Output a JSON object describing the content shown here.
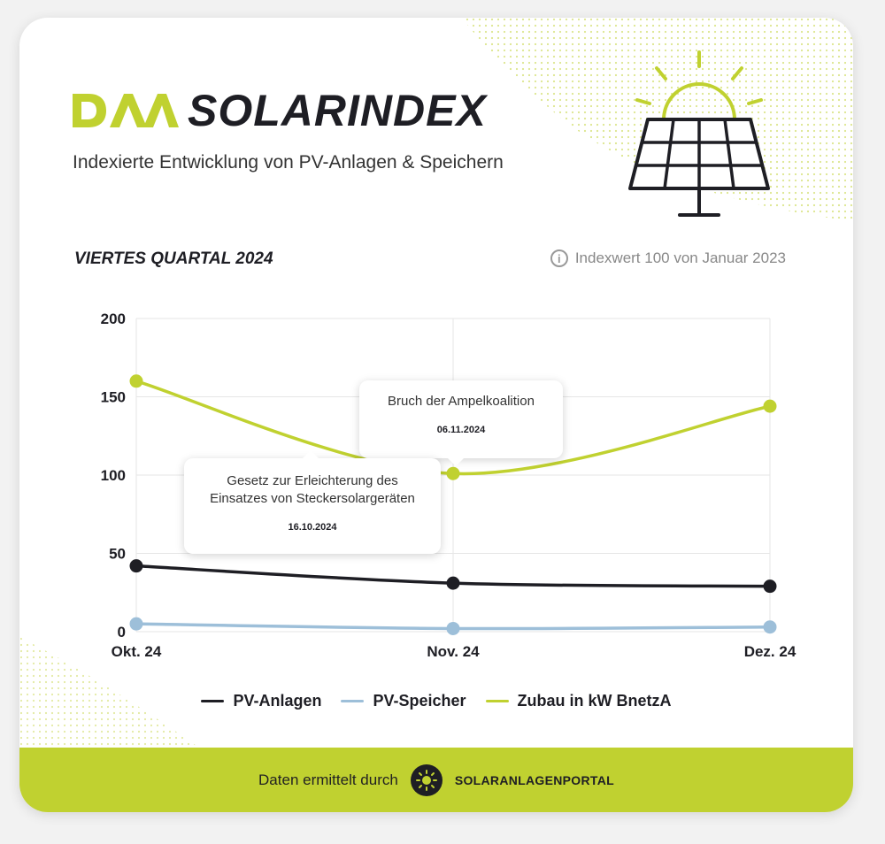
{
  "header": {
    "brand": "SOLARINDEX",
    "subtitle": "Indexierte Entwicklung von PV-Anlagen & Speichern"
  },
  "quarter_label": "VIERTES QUARTAL 2024",
  "index_note": "Indexwert 100 von Januar 2023",
  "colors": {
    "accent": "#c0d130",
    "dark": "#1e1e24",
    "light_blue": "#9dbfd9"
  },
  "tooltips": [
    {
      "title": "Bruch der Ampelkoalition",
      "date": "06.11.2024"
    },
    {
      "title": "Gesetz zur Erleichterung des Einsatzes von Steckersolargeräten",
      "date": "16.10.2024"
    }
  ],
  "chart_data": {
    "type": "line",
    "categories": [
      "Okt. 24",
      "Nov. 24",
      "Dez. 24"
    ],
    "y_ticks": [
      "200",
      "150",
      "100",
      "50",
      "0"
    ],
    "ylim": [
      0,
      200
    ],
    "grid": true,
    "legend_position": "bottom",
    "series": [
      {
        "name": "PV-Anlagen",
        "color": "#1e1e24",
        "values": [
          42,
          31,
          29
        ]
      },
      {
        "name": "PV-Speicher",
        "color": "#9dbfd9",
        "values": [
          5,
          2,
          3
        ]
      },
      {
        "name": "Zubau in kW BnetzA",
        "color": "#c0d130",
        "values": [
          160,
          101,
          144
        ]
      }
    ]
  },
  "footer": {
    "text": "Daten ermittelt durch",
    "portal": "SOLARANLAGENPORTAL"
  }
}
